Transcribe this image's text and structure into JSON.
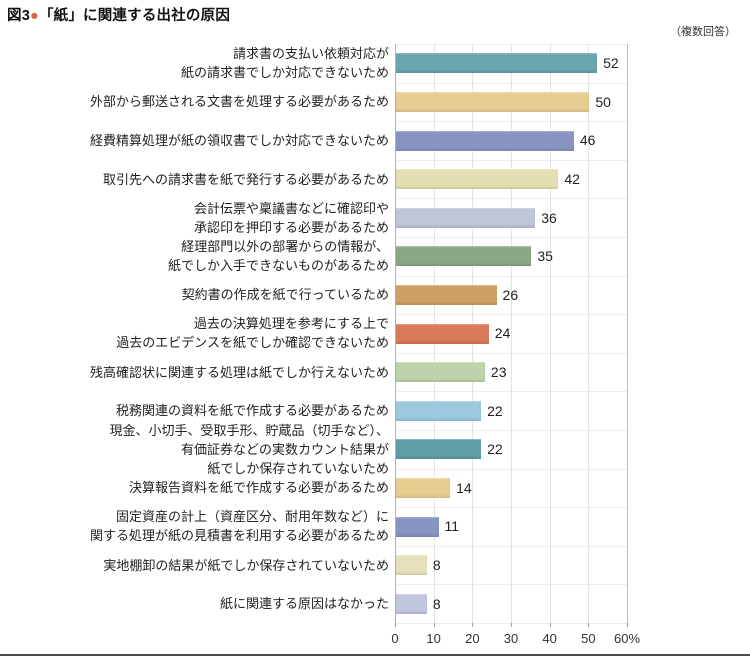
{
  "header": {
    "figure_label": "図3",
    "bullet": "●",
    "bullet_color": "#dc6a43",
    "title": "「紙」に関連する出社の原因"
  },
  "note": "（複数回答）",
  "chart_data": {
    "type": "bar",
    "orientation": "horizontal",
    "title": "「紙」に関連する出社の原因",
    "note": "（複数回答）",
    "unit": "%",
    "xlim": [
      0,
      60
    ],
    "x_ticks": [
      0,
      10,
      20,
      30,
      40,
      50,
      60
    ],
    "x_tick_labels": [
      "0",
      "10",
      "20",
      "30",
      "40",
      "50",
      "60%"
    ],
    "grid": true,
    "legend": false,
    "categories": [
      "請求書の支払い依頼対応が\n紙の請求書でしか対応できないため",
      "外部から郵送される文書を処理する必要があるため",
      "経費精算処理が紙の領収書でしか対応できないため",
      "取引先への請求書を紙で発行する必要があるため",
      "会計伝票や稟議書などに確認印や\n承認印を押印する必要があるため",
      "経理部門以外の部署からの情報が、\n紙でしか入手できないものがあるため",
      "契約書の作成を紙で行っているため",
      "過去の決算処理を参考にする上で\n過去のエビデンスを紙でしか確認できないため",
      "残高確認状に関連する処理は紙でしか行えないため",
      "税務関連の資料を紙で作成する必要があるため",
      "現金、小切手、受取手形、貯蔵品（切手など）、\n有価証券などの実数カウント結果が\n紙でしか保存されていないため",
      "決算報告資料を紙で作成する必要があるため",
      "固定資産の計上（資産区分、耐用年数など）に\n関する処理が紙の見積書を利用する必要があるため",
      "実地棚卸の結果が紙でしか保存されていないため",
      "紙に関連する原因はなかった"
    ],
    "values": [
      52,
      50,
      46,
      42,
      36,
      35,
      26,
      24,
      23,
      22,
      22,
      14,
      11,
      8,
      8
    ],
    "bar_colors": [
      "#6aa6ad",
      "#e8cd92",
      "#8a94c3",
      "#e3dfb2",
      "#c0c6da",
      "#8ba884",
      "#cd9f63",
      "#db7a59",
      "#bcd3ab",
      "#9cc8e0",
      "#5f9da7",
      "#e8cd92",
      "#8a94c3",
      "#e5e1ba",
      "#c1c7dd"
    ]
  }
}
